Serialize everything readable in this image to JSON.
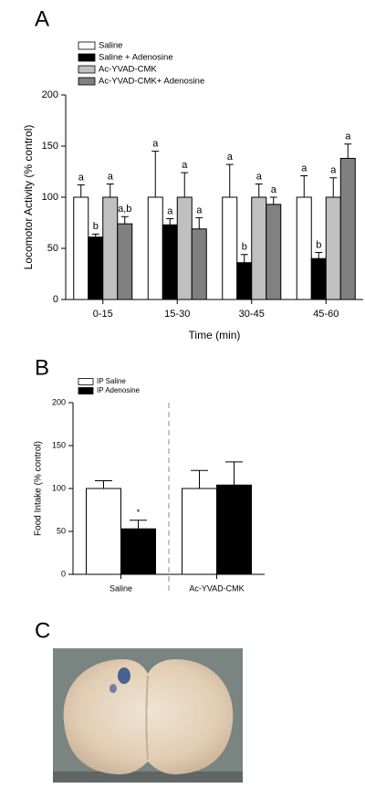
{
  "chart_data": [
    {
      "type": "bar",
      "panel_label": "A",
      "ylabel": "Locomotor Activity (% control)",
      "xlabel": "Time (min)",
      "categories": [
        "0-15",
        "15-30",
        "30-45",
        "45-60"
      ],
      "series": [
        {
          "name": "Saline",
          "color": "#ffffff",
          "values": [
            100,
            100,
            100,
            100
          ],
          "errors": [
            12,
            45,
            32,
            21
          ],
          "significance": [
            "a",
            "a",
            "a",
            "a"
          ]
        },
        {
          "name": "Saline + Adenosine",
          "color": "#000000",
          "values": [
            61,
            73,
            36,
            40
          ],
          "errors": [
            3,
            6,
            8,
            6
          ],
          "significance": [
            "b",
            "a",
            "b",
            "b"
          ]
        },
        {
          "name": "Ac-YVAD-CMK",
          "color": "#c0c0c0",
          "values": [
            100,
            100,
            100,
            100
          ],
          "errors": [
            13,
            24,
            13,
            19
          ],
          "significance": [
            "a",
            "a",
            "a",
            "a"
          ]
        },
        {
          "name": "Ac-YVAD-CMK+ Adenosine",
          "color": "#808080",
          "values": [
            74,
            69,
            93,
            138
          ],
          "errors": [
            7,
            11,
            7,
            14
          ],
          "significance": [
            "a,b",
            "a",
            "a",
            "a"
          ]
        }
      ],
      "ylim": [
        0,
        200
      ],
      "yticks": [
        0,
        50,
        100,
        150,
        200
      ],
      "group_divider": false
    },
    {
      "type": "bar",
      "panel_label": "B",
      "ylabel": "Food Intake (% control)",
      "categories": [
        "Saline",
        "Ac-YVAD-CMK"
      ],
      "series": [
        {
          "name": "IP Saline",
          "color": "#ffffff",
          "values": [
            100,
            100
          ],
          "errors": [
            9,
            21
          ],
          "significance": [
            null,
            null
          ]
        },
        {
          "name": "IP Adenosine",
          "color": "#000000",
          "values": [
            53,
            104
          ],
          "errors": [
            10,
            27
          ],
          "significance": [
            "*",
            null
          ]
        }
      ],
      "ylim": [
        0,
        200
      ],
      "yticks": [
        0,
        50,
        100,
        150,
        200
      ],
      "group_divider": true
    }
  ],
  "panel_c": {
    "panel_label": "C"
  }
}
